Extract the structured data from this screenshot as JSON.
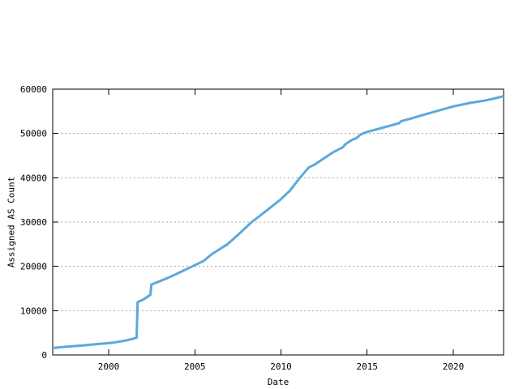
{
  "chart_data": {
    "type": "line",
    "title": "",
    "xlabel": "Date",
    "ylabel": "Assigned AS Count",
    "xlim": [
      1996.75,
      2022.92
    ],
    "ylim": [
      0,
      60000
    ],
    "x_ticks": [
      {
        "v": 2000,
        "label": "2000"
      },
      {
        "v": 2005,
        "label": "2005"
      },
      {
        "v": 2010,
        "label": "2010"
      },
      {
        "v": 2015,
        "label": "2015"
      },
      {
        "v": 2020,
        "label": "2020"
      }
    ],
    "y_ticks": [
      {
        "v": 0,
        "label": "0"
      },
      {
        "v": 10000,
        "label": "10000"
      },
      {
        "v": 20000,
        "label": "20000"
      },
      {
        "v": 30000,
        "label": "30000"
      },
      {
        "v": 40000,
        "label": "40000"
      },
      {
        "v": 50000,
        "label": "50000"
      },
      {
        "v": 60000,
        "label": "60000"
      }
    ],
    "grid": {
      "horizontal": true,
      "vertical": false,
      "style": "dashed"
    },
    "legend_position": "none",
    "colors": {
      "line": "#5BA9DC",
      "grid": "#A9A9A9",
      "axis": "#000000",
      "text": "#000000",
      "background": "#FFFFFF"
    },
    "line_width": 3,
    "series": [
      {
        "name": "Assigned AS Count",
        "points": [
          [
            1996.75,
            1550
          ],
          [
            1997.5,
            1850
          ],
          [
            1998.5,
            2150
          ],
          [
            1999.5,
            2500
          ],
          [
            2000.3,
            2800
          ],
          [
            2001.0,
            3250
          ],
          [
            2001.55,
            3800
          ],
          [
            2001.62,
            3900
          ],
          [
            2001.68,
            11950
          ],
          [
            2002.0,
            12500
          ],
          [
            2002.42,
            13600
          ],
          [
            2002.48,
            15900
          ],
          [
            2003.0,
            16700
          ],
          [
            2003.5,
            17500
          ],
          [
            2004.0,
            18400
          ],
          [
            2004.85,
            20000
          ],
          [
            2005.5,
            21200
          ],
          [
            2006.0,
            22800
          ],
          [
            2006.9,
            25000
          ],
          [
            2007.5,
            27100
          ],
          [
            2008.3,
            30000
          ],
          [
            2009.0,
            32100
          ],
          [
            2009.95,
            35000
          ],
          [
            2010.5,
            37000
          ],
          [
            2011.1,
            40000
          ],
          [
            2011.6,
            42300
          ],
          [
            2012.0,
            43100
          ],
          [
            2013.0,
            45700
          ],
          [
            2013.6,
            46900
          ],
          [
            2013.72,
            47500
          ],
          [
            2014.1,
            48500
          ],
          [
            2014.4,
            49000
          ],
          [
            2014.6,
            49700
          ],
          [
            2014.8,
            50050
          ],
          [
            2015.0,
            50350
          ],
          [
            2016.0,
            51400
          ],
          [
            2016.85,
            52300
          ],
          [
            2016.98,
            52800
          ],
          [
            2017.5,
            53300
          ],
          [
            2018.0,
            53900
          ],
          [
            2019.0,
            55000
          ],
          [
            2020.0,
            56100
          ],
          [
            2021.0,
            56900
          ],
          [
            2021.8,
            57400
          ],
          [
            2022.3,
            57800
          ],
          [
            2022.7,
            58200
          ],
          [
            2022.92,
            58400
          ]
        ]
      }
    ]
  }
}
